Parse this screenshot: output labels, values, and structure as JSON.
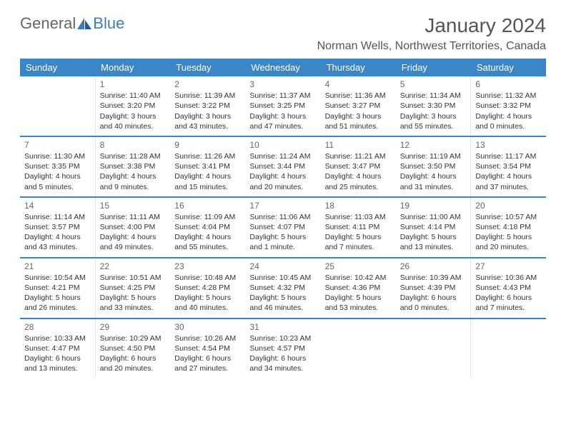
{
  "logo": {
    "part1": "General",
    "part2": "Blue"
  },
  "title": "January 2024",
  "location": "Norman Wells, Northwest Territories, Canada",
  "colors": {
    "header_bg": "#3a86c7",
    "header_text": "#ffffff",
    "row_border": "#3a86c7",
    "weekend_border": "#d6e4f0",
    "text": "#333333",
    "title_text": "#555555",
    "logo_blue": "#3a7dc0"
  },
  "day_headers": [
    "Sunday",
    "Monday",
    "Tuesday",
    "Wednesday",
    "Thursday",
    "Friday",
    "Saturday"
  ],
  "weeks": [
    [
      {
        "day": "",
        "sunrise": "",
        "sunset": "",
        "daylight1": "",
        "daylight2": ""
      },
      {
        "day": "1",
        "sunrise": "Sunrise: 11:40 AM",
        "sunset": "Sunset: 3:20 PM",
        "daylight1": "Daylight: 3 hours",
        "daylight2": "and 40 minutes."
      },
      {
        "day": "2",
        "sunrise": "Sunrise: 11:39 AM",
        "sunset": "Sunset: 3:22 PM",
        "daylight1": "Daylight: 3 hours",
        "daylight2": "and 43 minutes."
      },
      {
        "day": "3",
        "sunrise": "Sunrise: 11:37 AM",
        "sunset": "Sunset: 3:25 PM",
        "daylight1": "Daylight: 3 hours",
        "daylight2": "and 47 minutes."
      },
      {
        "day": "4",
        "sunrise": "Sunrise: 11:36 AM",
        "sunset": "Sunset: 3:27 PM",
        "daylight1": "Daylight: 3 hours",
        "daylight2": "and 51 minutes."
      },
      {
        "day": "5",
        "sunrise": "Sunrise: 11:34 AM",
        "sunset": "Sunset: 3:30 PM",
        "daylight1": "Daylight: 3 hours",
        "daylight2": "and 55 minutes."
      },
      {
        "day": "6",
        "sunrise": "Sunrise: 11:32 AM",
        "sunset": "Sunset: 3:32 PM",
        "daylight1": "Daylight: 4 hours",
        "daylight2": "and 0 minutes."
      }
    ],
    [
      {
        "day": "7",
        "sunrise": "Sunrise: 11:30 AM",
        "sunset": "Sunset: 3:35 PM",
        "daylight1": "Daylight: 4 hours",
        "daylight2": "and 5 minutes."
      },
      {
        "day": "8",
        "sunrise": "Sunrise: 11:28 AM",
        "sunset": "Sunset: 3:38 PM",
        "daylight1": "Daylight: 4 hours",
        "daylight2": "and 9 minutes."
      },
      {
        "day": "9",
        "sunrise": "Sunrise: 11:26 AM",
        "sunset": "Sunset: 3:41 PM",
        "daylight1": "Daylight: 4 hours",
        "daylight2": "and 15 minutes."
      },
      {
        "day": "10",
        "sunrise": "Sunrise: 11:24 AM",
        "sunset": "Sunset: 3:44 PM",
        "daylight1": "Daylight: 4 hours",
        "daylight2": "and 20 minutes."
      },
      {
        "day": "11",
        "sunrise": "Sunrise: 11:21 AM",
        "sunset": "Sunset: 3:47 PM",
        "daylight1": "Daylight: 4 hours",
        "daylight2": "and 25 minutes."
      },
      {
        "day": "12",
        "sunrise": "Sunrise: 11:19 AM",
        "sunset": "Sunset: 3:50 PM",
        "daylight1": "Daylight: 4 hours",
        "daylight2": "and 31 minutes."
      },
      {
        "day": "13",
        "sunrise": "Sunrise: 11:17 AM",
        "sunset": "Sunset: 3:54 PM",
        "daylight1": "Daylight: 4 hours",
        "daylight2": "and 37 minutes."
      }
    ],
    [
      {
        "day": "14",
        "sunrise": "Sunrise: 11:14 AM",
        "sunset": "Sunset: 3:57 PM",
        "daylight1": "Daylight: 4 hours",
        "daylight2": "and 43 minutes."
      },
      {
        "day": "15",
        "sunrise": "Sunrise: 11:11 AM",
        "sunset": "Sunset: 4:00 PM",
        "daylight1": "Daylight: 4 hours",
        "daylight2": "and 49 minutes."
      },
      {
        "day": "16",
        "sunrise": "Sunrise: 11:09 AM",
        "sunset": "Sunset: 4:04 PM",
        "daylight1": "Daylight: 4 hours",
        "daylight2": "and 55 minutes."
      },
      {
        "day": "17",
        "sunrise": "Sunrise: 11:06 AM",
        "sunset": "Sunset: 4:07 PM",
        "daylight1": "Daylight: 5 hours",
        "daylight2": "and 1 minute."
      },
      {
        "day": "18",
        "sunrise": "Sunrise: 11:03 AM",
        "sunset": "Sunset: 4:11 PM",
        "daylight1": "Daylight: 5 hours",
        "daylight2": "and 7 minutes."
      },
      {
        "day": "19",
        "sunrise": "Sunrise: 11:00 AM",
        "sunset": "Sunset: 4:14 PM",
        "daylight1": "Daylight: 5 hours",
        "daylight2": "and 13 minutes."
      },
      {
        "day": "20",
        "sunrise": "Sunrise: 10:57 AM",
        "sunset": "Sunset: 4:18 PM",
        "daylight1": "Daylight: 5 hours",
        "daylight2": "and 20 minutes."
      }
    ],
    [
      {
        "day": "21",
        "sunrise": "Sunrise: 10:54 AM",
        "sunset": "Sunset: 4:21 PM",
        "daylight1": "Daylight: 5 hours",
        "daylight2": "and 26 minutes."
      },
      {
        "day": "22",
        "sunrise": "Sunrise: 10:51 AM",
        "sunset": "Sunset: 4:25 PM",
        "daylight1": "Daylight: 5 hours",
        "daylight2": "and 33 minutes."
      },
      {
        "day": "23",
        "sunrise": "Sunrise: 10:48 AM",
        "sunset": "Sunset: 4:28 PM",
        "daylight1": "Daylight: 5 hours",
        "daylight2": "and 40 minutes."
      },
      {
        "day": "24",
        "sunrise": "Sunrise: 10:45 AM",
        "sunset": "Sunset: 4:32 PM",
        "daylight1": "Daylight: 5 hours",
        "daylight2": "and 46 minutes."
      },
      {
        "day": "25",
        "sunrise": "Sunrise: 10:42 AM",
        "sunset": "Sunset: 4:36 PM",
        "daylight1": "Daylight: 5 hours",
        "daylight2": "and 53 minutes."
      },
      {
        "day": "26",
        "sunrise": "Sunrise: 10:39 AM",
        "sunset": "Sunset: 4:39 PM",
        "daylight1": "Daylight: 6 hours",
        "daylight2": "and 0 minutes."
      },
      {
        "day": "27",
        "sunrise": "Sunrise: 10:36 AM",
        "sunset": "Sunset: 4:43 PM",
        "daylight1": "Daylight: 6 hours",
        "daylight2": "and 7 minutes."
      }
    ],
    [
      {
        "day": "28",
        "sunrise": "Sunrise: 10:33 AM",
        "sunset": "Sunset: 4:47 PM",
        "daylight1": "Daylight: 6 hours",
        "daylight2": "and 13 minutes."
      },
      {
        "day": "29",
        "sunrise": "Sunrise: 10:29 AM",
        "sunset": "Sunset: 4:50 PM",
        "daylight1": "Daylight: 6 hours",
        "daylight2": "and 20 minutes."
      },
      {
        "day": "30",
        "sunrise": "Sunrise: 10:26 AM",
        "sunset": "Sunset: 4:54 PM",
        "daylight1": "Daylight: 6 hours",
        "daylight2": "and 27 minutes."
      },
      {
        "day": "31",
        "sunrise": "Sunrise: 10:23 AM",
        "sunset": "Sunset: 4:57 PM",
        "daylight1": "Daylight: 6 hours",
        "daylight2": "and 34 minutes."
      },
      {
        "day": "",
        "sunrise": "",
        "sunset": "",
        "daylight1": "",
        "daylight2": ""
      },
      {
        "day": "",
        "sunrise": "",
        "sunset": "",
        "daylight1": "",
        "daylight2": ""
      },
      {
        "day": "",
        "sunrise": "",
        "sunset": "",
        "daylight1": "",
        "daylight2": ""
      }
    ]
  ]
}
